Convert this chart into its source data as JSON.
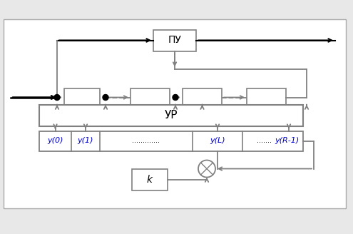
{
  "bg_color": "#e8e8e8",
  "diagram_bg": "#ffffff",
  "box_edge_color": "#808080",
  "black": "#000000",
  "gray": "#808080",
  "blue": "#0000cc",
  "pu_label": "ПУ",
  "ur_label": "УР",
  "k_label": "k",
  "y0_label": "y(0)",
  "y1_label": "y(1)",
  "yL_label": "y(L)",
  "yR_label": "y(R-1)",
  "dots_long": ".............",
  "dots_short": ".......",
  "lw_black": 1.5,
  "lw_gray": 1.3
}
